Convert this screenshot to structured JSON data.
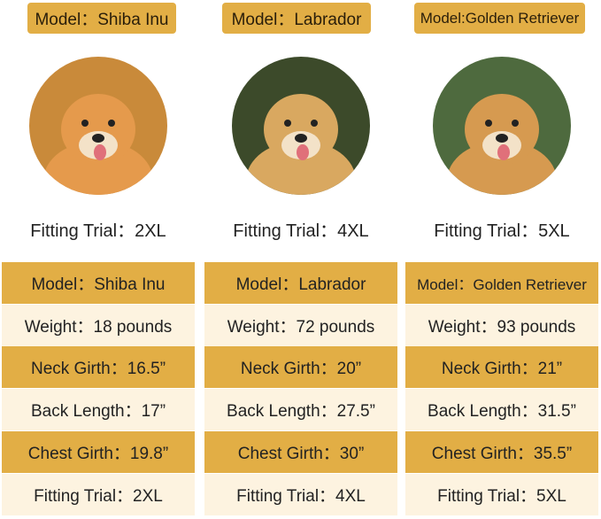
{
  "dogs": [
    {
      "model": "Model：Shiba Inu",
      "fitting": "Fitting Trial：2XL",
      "table": [
        "Model：Shiba Inu",
        "Weight：18 pounds",
        "Neck Girth：16.5”",
        "Back Length：17”",
        "Chest Girth：19.8”",
        "Fitting Trial：2XL"
      ],
      "fur": "#E59A4C",
      "bg": "#C98A3A"
    },
    {
      "model": "Model：Labrador",
      "fitting": "Fitting Trial：4XL",
      "table": [
        "Model：Labrador",
        "Weight：72 pounds",
        "Neck Girth：20”",
        "Back Length：27.5”",
        "Chest Girth：30”",
        "Fitting Trial：4XL"
      ],
      "fur": "#D9A860",
      "bg": "#3C4A2A"
    },
    {
      "model": "Model:Golden Retriever",
      "fitting": "Fitting Trial：5XL",
      "table": [
        "Model：Golden Retriever",
        "Weight：93 pounds",
        "Neck Girth：21”",
        "Back Length：31.5”",
        "Chest Girth：35.5”",
        "Fitting Trial：5XL"
      ],
      "fur": "#D69A50",
      "bg": "#4E6A3E"
    }
  ],
  "colors": {
    "gold": "#E2AE45",
    "cream": "#FDF3E0"
  }
}
